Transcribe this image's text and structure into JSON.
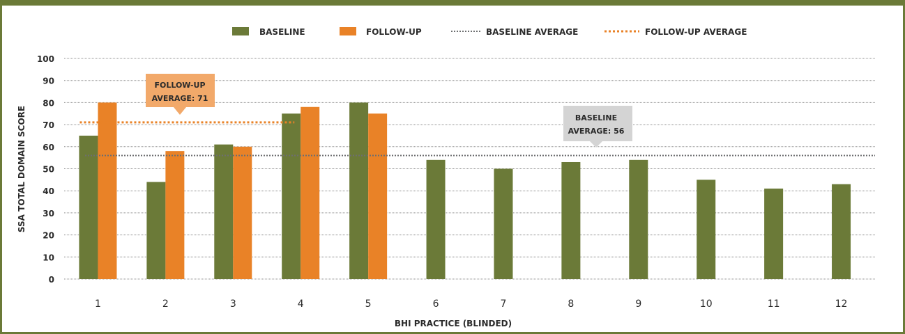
{
  "chart_data": {
    "type": "bar",
    "title": "",
    "xlabel": "BHI PRACTICE (BLINDED)",
    "ylabel": "SSA TOTAL DOMAIN SCORE",
    "ylim": [
      0,
      100
    ],
    "yticks": [
      "0",
      "10",
      "20",
      "30",
      "40",
      "50",
      "60",
      "70",
      "80",
      "90",
      "100"
    ],
    "categories": [
      "1",
      "2",
      "3",
      "4",
      "5",
      "6",
      "7",
      "8",
      "9",
      "10",
      "11",
      "12"
    ],
    "series": [
      {
        "name": "BASELINE",
        "color": "#6b7a38",
        "values": [
          65,
          44,
          61,
          75,
          80,
          54,
          50,
          53,
          54,
          45,
          41,
          43
        ]
      },
      {
        "name": "FOLLOW-UP",
        "color": "#e98227",
        "values": [
          80,
          58,
          60,
          78,
          75,
          null,
          null,
          null,
          null,
          null,
          null,
          null
        ]
      }
    ],
    "averages": [
      {
        "name": "BASELINE AVERAGE",
        "value": 56,
        "color": "#6d6e70",
        "style": "dotted"
      },
      {
        "name": "FOLLOW-UP AVERAGE",
        "value": 71,
        "color": "#e98227",
        "style": "dotted"
      }
    ],
    "callouts": [
      {
        "line1": "FOLLOW-UP",
        "line2": "AVERAGE: 71",
        "color": "#f2a96a"
      },
      {
        "line1": "BASELINE",
        "line2": "AVERAGE: 56",
        "color": "#d4d4d4"
      }
    ],
    "grid": true,
    "legend_placement": "top-center"
  }
}
